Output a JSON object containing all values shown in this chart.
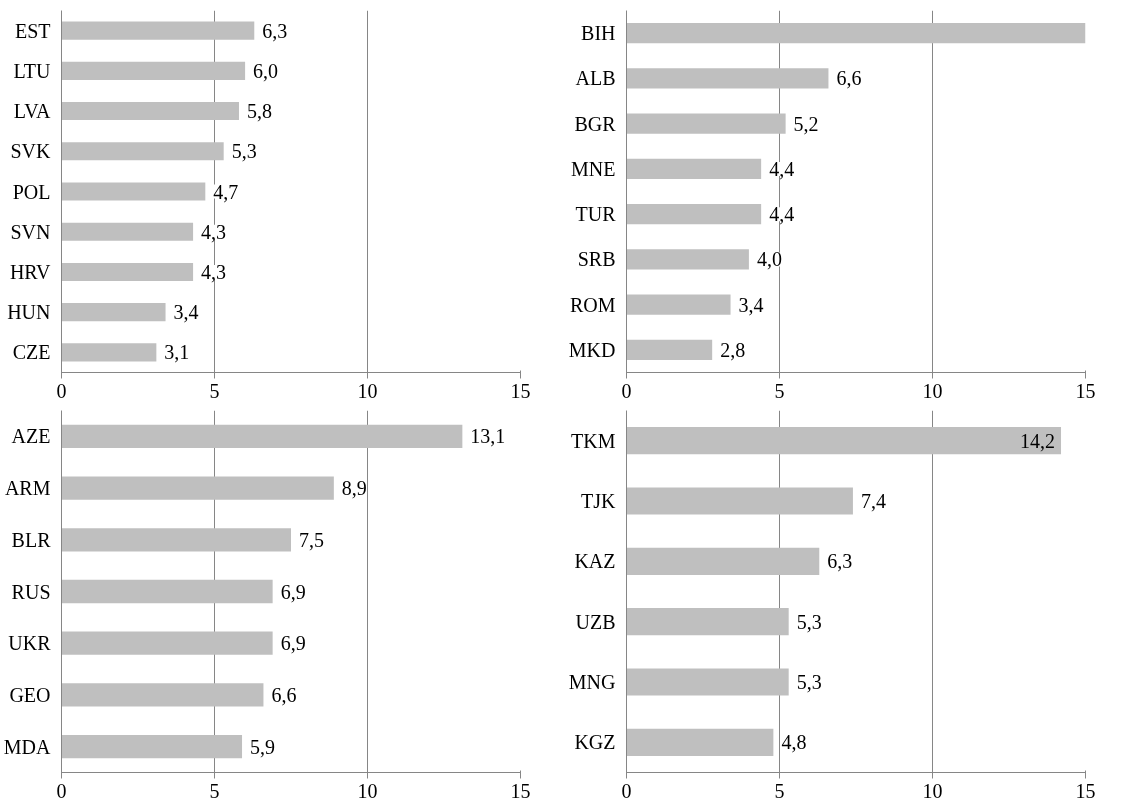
{
  "chart_data": [
    {
      "type": "bar",
      "orientation": "horizontal",
      "categories": [
        "EST",
        "LTU",
        "LVA",
        "SVK",
        "POL",
        "SVN",
        "HRV",
        "HUN",
        "CZE"
      ],
      "values": [
        6.3,
        6.0,
        5.8,
        5.3,
        4.7,
        4.3,
        4.3,
        3.4,
        3.1
      ],
      "value_labels": [
        "6,3",
        "6,0",
        "5,8",
        "5,3",
        "4,7",
        "4,3",
        "4,3",
        "3,4",
        "3,1"
      ],
      "color": "#bfbfbf",
      "xlim": [
        0,
        15
      ],
      "xticks": [
        0,
        5,
        10,
        15
      ],
      "grid": "x"
    },
    {
      "type": "bar",
      "orientation": "horizontal",
      "categories": [
        "BIH",
        "ALB",
        "BGR",
        "MNE",
        "TUR",
        "SRB",
        "ROM",
        "MKD"
      ],
      "values": [
        15,
        6.6,
        5.2,
        4.4,
        4.4,
        4.0,
        3.4,
        2.8
      ],
      "value_labels": [
        null,
        "6,6",
        "5,2",
        "4,4",
        "4,4",
        "4,0",
        "3,4",
        "2,8"
      ],
      "color": "#bfbfbf",
      "xlim": [
        0,
        15
      ],
      "xticks": [
        0,
        5,
        10,
        15
      ],
      "grid": "x"
    },
    {
      "type": "bar",
      "orientation": "horizontal",
      "categories": [
        "AZE",
        "ARM",
        "BLR",
        "RUS",
        "UKR",
        "GEO",
        "MDA"
      ],
      "values": [
        13.1,
        8.9,
        7.5,
        6.9,
        6.9,
        6.6,
        5.9
      ],
      "value_labels": [
        "13,1",
        "8,9",
        "7,5",
        "6,9",
        "6,9",
        "6,6",
        "5,9"
      ],
      "color": "#bfbfbf",
      "xlim": [
        0,
        15
      ],
      "xticks": [
        0,
        5,
        10,
        15
      ],
      "grid": "x"
    },
    {
      "type": "bar",
      "orientation": "horizontal",
      "categories": [
        "TKM",
        "TJK",
        "KAZ",
        "UZB",
        "MNG",
        "KGZ"
      ],
      "values": [
        14.2,
        7.4,
        6.3,
        5.3,
        5.3,
        4.8
      ],
      "value_labels": [
        "14,2",
        "7,4",
        "6,3",
        "5,3",
        "5,3",
        "4,8"
      ],
      "color": "#bfbfbf",
      "xlim": [
        0,
        15
      ],
      "xticks": [
        0,
        5,
        10,
        15
      ],
      "grid": "x"
    }
  ]
}
